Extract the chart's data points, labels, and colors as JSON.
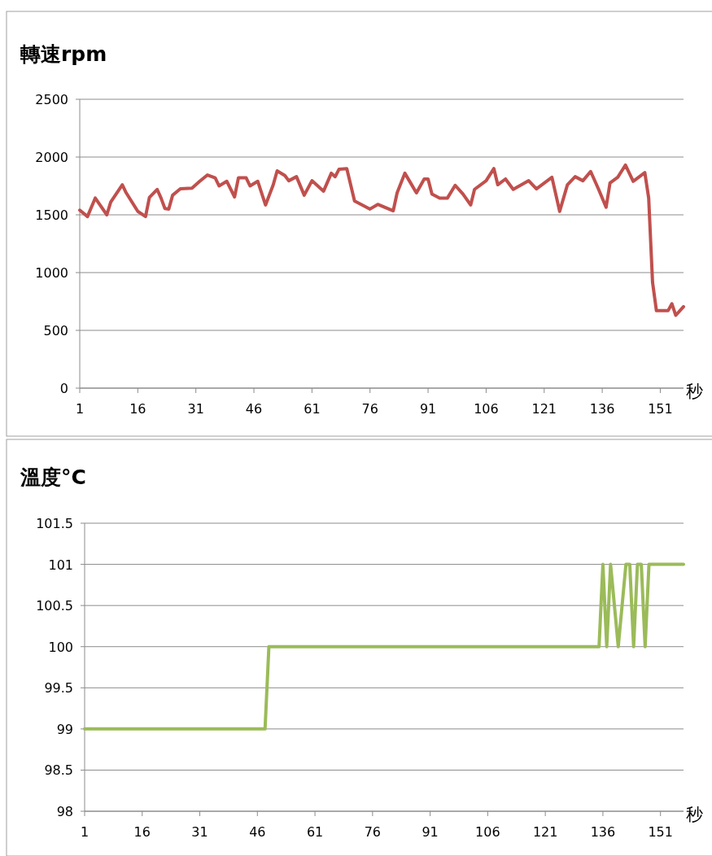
{
  "chart_data": [
    {
      "type": "line",
      "title": "轉速rpm",
      "xlabel": "秒",
      "xlim": [
        1,
        157
      ],
      "xticks": [
        1,
        16,
        31,
        46,
        61,
        76,
        91,
        106,
        121,
        136,
        151
      ],
      "ylim": [
        0,
        2500
      ],
      "yticks": [
        0,
        500,
        1000,
        1500,
        2000,
        2500
      ],
      "grid": "y",
      "series": [
        {
          "color": "#c0504d",
          "x": [
            1,
            3,
            5,
            8,
            9,
            12,
            13,
            16,
            18,
            19,
            21,
            22,
            23,
            24,
            25,
            27,
            30,
            32,
            34,
            36,
            37,
            39,
            41,
            42,
            44,
            45,
            47,
            49,
            51,
            52,
            54,
            55,
            57,
            59,
            61,
            64,
            66,
            67,
            68,
            70,
            72,
            74,
            76,
            78,
            82,
            83,
            85,
            88,
            90,
            91,
            92,
            94,
            96,
            98,
            100,
            102,
            103,
            106,
            108,
            109,
            111,
            113,
            117,
            119,
            123,
            125,
            127,
            129,
            131,
            133,
            135,
            137,
            138,
            140,
            142,
            144,
            147,
            148,
            149,
            150,
            153,
            154,
            155,
            157
          ],
          "values": [
            1540,
            1485,
            1645,
            1500,
            1610,
            1760,
            1690,
            1530,
            1485,
            1650,
            1720,
            1645,
            1555,
            1550,
            1670,
            1725,
            1730,
            1790,
            1845,
            1820,
            1750,
            1790,
            1655,
            1820,
            1820,
            1750,
            1790,
            1585,
            1760,
            1880,
            1840,
            1795,
            1830,
            1670,
            1795,
            1705,
            1860,
            1830,
            1895,
            1900,
            1620,
            1585,
            1550,
            1590,
            1535,
            1690,
            1860,
            1690,
            1810,
            1810,
            1680,
            1645,
            1645,
            1755,
            1680,
            1585,
            1720,
            1795,
            1900,
            1760,
            1810,
            1720,
            1795,
            1725,
            1825,
            1530,
            1760,
            1830,
            1795,
            1875,
            1725,
            1565,
            1775,
            1825,
            1930,
            1790,
            1865,
            1645,
            915,
            670,
            670,
            730,
            630,
            705
          ]
        }
      ]
    },
    {
      "type": "line",
      "title": "溫度°C",
      "xlabel": "秒",
      "xlim": [
        1,
        157
      ],
      "xticks": [
        1,
        16,
        31,
        46,
        61,
        76,
        91,
        106,
        121,
        136,
        151
      ],
      "ylim": [
        98,
        101.5
      ],
      "yticks": [
        98,
        98.5,
        99,
        99.5,
        100,
        100.5,
        101,
        101.5
      ],
      "grid": "y",
      "series": [
        {
          "color": "#9bbb59",
          "x": [
            1,
            48,
            49,
            135,
            136,
            137,
            138,
            140,
            142,
            143,
            144,
            145,
            146,
            147,
            148,
            157
          ],
          "values": [
            99,
            99,
            100,
            100,
            101,
            100,
            101,
            100,
            101,
            101,
            100,
            101,
            101,
            100,
            101,
            101
          ]
        }
      ]
    }
  ]
}
